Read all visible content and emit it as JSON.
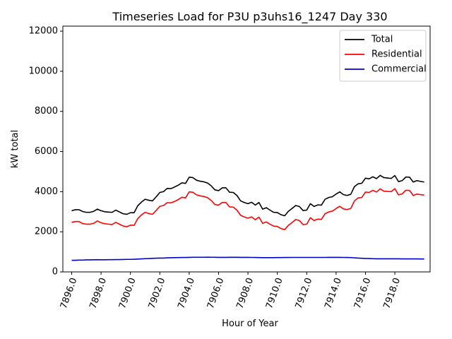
{
  "chart_data": {
    "type": "line",
    "title": "Timeseries Load for P3U p3uhs16_1247  Day 330",
    "xlabel": "Hour of Year",
    "ylabel": "kW total",
    "xlim": [
      7895.4,
      7920.4
    ],
    "ylim": [
      0,
      12250
    ],
    "x_start": 7896.0,
    "x_step": 0.25,
    "xticks": [
      7896,
      7898,
      7900,
      7902,
      7904,
      7906,
      7908,
      7910,
      7912,
      7914,
      7916,
      7918
    ],
    "xtick_labels": [
      "7896.0",
      "7898.0",
      "7900.0",
      "7902.0",
      "7904.0",
      "7906.0",
      "7908.0",
      "7910.0",
      "7912.0",
      "7914.0",
      "7916.0",
      "7918.0"
    ],
    "yticks": [
      0,
      2000,
      4000,
      6000,
      8000,
      10000,
      12000
    ],
    "ytick_labels": [
      "0",
      "2000",
      "4000",
      "6000",
      "8000",
      "10000",
      "12000"
    ],
    "grid": false,
    "legend_position": "top-right",
    "series": [
      {
        "name": "Total",
        "color": "#000000",
        "values": [
          3050,
          3100,
          3100,
          3010,
          2970,
          2970,
          3020,
          3130,
          3050,
          3000,
          2980,
          2970,
          3080,
          2990,
          2900,
          2870,
          2950,
          2950,
          3300,
          3480,
          3620,
          3570,
          3540,
          3740,
          3960,
          4000,
          4160,
          4150,
          4230,
          4320,
          4440,
          4410,
          4720,
          4700,
          4570,
          4520,
          4490,
          4430,
          4290,
          4090,
          4050,
          4190,
          4190,
          3970,
          3960,
          3810,
          3540,
          3460,
          3400,
          3470,
          3330,
          3460,
          3130,
          3200,
          3080,
          2970,
          2960,
          2850,
          2800,
          3020,
          3160,
          3310,
          3260,
          3060,
          3080,
          3400,
          3260,
          3340,
          3330,
          3620,
          3710,
          3750,
          3880,
          3990,
          3850,
          3810,
          3870,
          4250,
          4390,
          4420,
          4670,
          4640,
          4740,
          4650,
          4810,
          4700,
          4680,
          4660,
          4800,
          4500,
          4550,
          4730,
          4720,
          4480,
          4550,
          4510,
          4480
        ]
      },
      {
        "name": "Residential",
        "color": "#ff0000",
        "values": [
          2470,
          2510,
          2510,
          2410,
          2380,
          2380,
          2420,
          2540,
          2450,
          2400,
          2380,
          2360,
          2470,
          2380,
          2290,
          2250,
          2330,
          2320,
          2660,
          2840,
          2970,
          2910,
          2870,
          3060,
          3270,
          3310,
          3450,
          3440,
          3510,
          3600,
          3720,
          3690,
          3990,
          3970,
          3840,
          3790,
          3760,
          3700,
          3560,
          3360,
          3330,
          3460,
          3460,
          3240,
          3230,
          3080,
          2820,
          2740,
          2680,
          2740,
          2600,
          2730,
          2420,
          2490,
          2380,
          2280,
          2270,
          2160,
          2110,
          2320,
          2460,
          2610,
          2560,
          2360,
          2380,
          2700,
          2560,
          2630,
          2620,
          2900,
          2990,
          3030,
          3160,
          3270,
          3140,
          3110,
          3160,
          3540,
          3690,
          3710,
          3980,
          3960,
          4070,
          3980,
          4140,
          4030,
          4010,
          4000,
          4150,
          3840,
          3890,
          4070,
          4060,
          3810,
          3880,
          3850,
          3830
        ]
      },
      {
        "name": "Commercial",
        "color": "#0000cc",
        "values": [
          580,
          580,
          590,
          590,
          600,
          600,
          605,
          610,
          605,
          605,
          610,
          610,
          615,
          615,
          620,
          625,
          625,
          630,
          640,
          650,
          660,
          665,
          675,
          685,
          690,
          690,
          700,
          705,
          710,
          715,
          720,
          720,
          725,
          730,
          730,
          730,
          730,
          735,
          730,
          730,
          725,
          725,
          725,
          728,
          728,
          728,
          725,
          725,
          725,
          722,
          720,
          715,
          710,
          710,
          710,
          710,
          715,
          715,
          718,
          720,
          722,
          722,
          722,
          722,
          722,
          722,
          722,
          722,
          722,
          722,
          725,
          725,
          725,
          725,
          722,
          720,
          715,
          700,
          690,
          680,
          670,
          665,
          660,
          655,
          655,
          652,
          652,
          652,
          652,
          652,
          650,
          650,
          648,
          648,
          648,
          645,
          645
        ]
      }
    ]
  }
}
